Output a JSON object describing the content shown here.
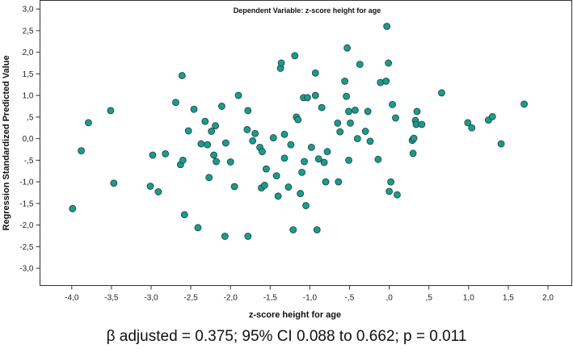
{
  "chart_data": {
    "type": "scatter",
    "title": "Dependent Variable: z-score height for age",
    "xlabel": "z-score height for age",
    "ylabel": "Regression Standardized Predicted Value",
    "xlim": [
      -4.4,
      2.3
    ],
    "ylim": [
      -3.4,
      3.2
    ],
    "x_ticks": [
      -4,
      -3.5,
      -3,
      -2.5,
      -2,
      -1.5,
      -1,
      -0.5,
      0,
      0.5,
      1,
      1.5,
      2
    ],
    "x_tick_labels": [
      "-4,0",
      "-3,5",
      "-3,0",
      "-2,5",
      "-2,0",
      "-1,5",
      "-1,0",
      "-,5",
      ",0",
      ",5",
      "1,0",
      "1,5",
      "2,0"
    ],
    "y_ticks": [
      3,
      2.5,
      2,
      1.5,
      1,
      0.5,
      0,
      -0.5,
      -1,
      -1.5,
      -2,
      -2.5,
      -3
    ],
    "y_tick_labels": [
      "3,0",
      "2,5",
      "2,0",
      "1,5",
      "1,0",
      ",5",
      "0,0",
      "-,5",
      "-1,0",
      "-1,5",
      "-2,0",
      "-2,5",
      "-3,0"
    ],
    "marker_color": "#1a9c8c",
    "marker_edge_color": "#1f3d38",
    "points": [
      [
        -3.99,
        -1.62
      ],
      [
        -3.88,
        -0.28
      ],
      [
        -3.79,
        0.37
      ],
      [
        -3.51,
        0.65
      ],
      [
        -3.47,
        -1.03
      ],
      [
        -3.01,
        -1.1
      ],
      [
        -2.98,
        -0.38
      ],
      [
        -2.91,
        -1.23
      ],
      [
        -2.82,
        -0.35
      ],
      [
        -2.69,
        0.84
      ],
      [
        -2.63,
        -0.6
      ],
      [
        -2.61,
        1.46
      ],
      [
        -2.6,
        -0.5
      ],
      [
        -2.58,
        -1.76
      ],
      [
        -2.53,
        0.18
      ],
      [
        -2.46,
        0.68
      ],
      [
        -2.41,
        -2.06
      ],
      [
        -2.37,
        -0.12
      ],
      [
        -2.32,
        0.4
      ],
      [
        -2.29,
        -0.14
      ],
      [
        -2.27,
        -0.9
      ],
      [
        -2.24,
        0.17
      ],
      [
        -2.21,
        -0.38
      ],
      [
        -2.19,
        0.3
      ],
      [
        -2.18,
        -0.53
      ],
      [
        -2.11,
        0.75
      ],
      [
        -2.07,
        -2.26
      ],
      [
        -2.06,
        -0.1
      ],
      [
        -2.0,
        -0.54
      ],
      [
        -1.95,
        -1.11
      ],
      [
        -1.9,
        1.0
      ],
      [
        -1.79,
        0.21
      ],
      [
        -1.78,
        0.65
      ],
      [
        -1.78,
        -2.26
      ],
      [
        -1.72,
        -0.05
      ],
      [
        -1.69,
        0.12
      ],
      [
        -1.63,
        -0.2
      ],
      [
        -1.61,
        -1.14
      ],
      [
        -1.6,
        -0.3
      ],
      [
        -1.57,
        -1.08
      ],
      [
        -1.55,
        -0.7
      ],
      [
        -1.46,
        0.02
      ],
      [
        -1.42,
        -0.86
      ],
      [
        -1.4,
        -1.33
      ],
      [
        -1.37,
        1.63
      ],
      [
        -1.36,
        1.75
      ],
      [
        -1.32,
        -0.45
      ],
      [
        -1.32,
        0.1
      ],
      [
        -1.27,
        -1.12
      ],
      [
        -1.24,
        -0.14
      ],
      [
        -1.21,
        -2.11
      ],
      [
        -1.19,
        1.92
      ],
      [
        -1.17,
        0.5
      ],
      [
        -1.15,
        0.44
      ],
      [
        -1.12,
        -1.27
      ],
      [
        -1.1,
        -0.78
      ],
      [
        -1.08,
        0.95
      ],
      [
        -1.07,
        -0.53
      ],
      [
        -1.05,
        -1.55
      ],
      [
        -1.03,
        0.95
      ],
      [
        -0.98,
        -0.2
      ],
      [
        -0.93,
        1.0
      ],
      [
        -0.93,
        1.52
      ],
      [
        -0.91,
        -2.11
      ],
      [
        -0.89,
        -0.47
      ],
      [
        -0.85,
        0.72
      ],
      [
        -0.82,
        -0.55
      ],
      [
        -0.8,
        -1.0
      ],
      [
        -0.78,
        -0.3
      ],
      [
        -0.65,
        0.36
      ],
      [
        -0.64,
        -1.0
      ],
      [
        -0.62,
        0.16
      ],
      [
        -0.56,
        1.33
      ],
      [
        -0.54,
        0.98
      ],
      [
        -0.53,
        2.1
      ],
      [
        -0.51,
        0.63
      ],
      [
        -0.51,
        -0.5
      ],
      [
        -0.49,
        0.36
      ],
      [
        -0.43,
        0.66
      ],
      [
        -0.4,
        0.0
      ],
      [
        -0.37,
        1.72
      ],
      [
        -0.3,
        0.17
      ],
      [
        -0.27,
        0.63
      ],
      [
        -0.24,
        -0.06
      ],
      [
        -0.14,
        -0.48
      ],
      [
        -0.11,
        1.3
      ],
      [
        -0.04,
        1.33
      ],
      [
        -0.03,
        2.6
      ],
      [
        -0.01,
        1.75
      ],
      [
        0.0,
        -1.22
      ],
      [
        0.02,
        -1.0
      ],
      [
        0.04,
        0.79
      ],
      [
        0.08,
        0.48
      ],
      [
        0.1,
        -1.3
      ],
      [
        0.29,
        -0.04
      ],
      [
        0.3,
        -0.34
      ],
      [
        0.31,
        0.01
      ],
      [
        0.33,
        0.42
      ],
      [
        0.34,
        0.33
      ],
      [
        0.35,
        0.63
      ],
      [
        0.41,
        0.33
      ],
      [
        0.66,
        1.06
      ],
      [
        0.99,
        0.37
      ],
      [
        1.04,
        0.25
      ],
      [
        1.25,
        0.43
      ],
      [
        1.3,
        0.51
      ],
      [
        1.41,
        -0.12
      ],
      [
        1.7,
        0.8
      ]
    ]
  },
  "caption": "β adjusted = 0.375; 95% CI 0.088 to 0.662; p = 0.011"
}
